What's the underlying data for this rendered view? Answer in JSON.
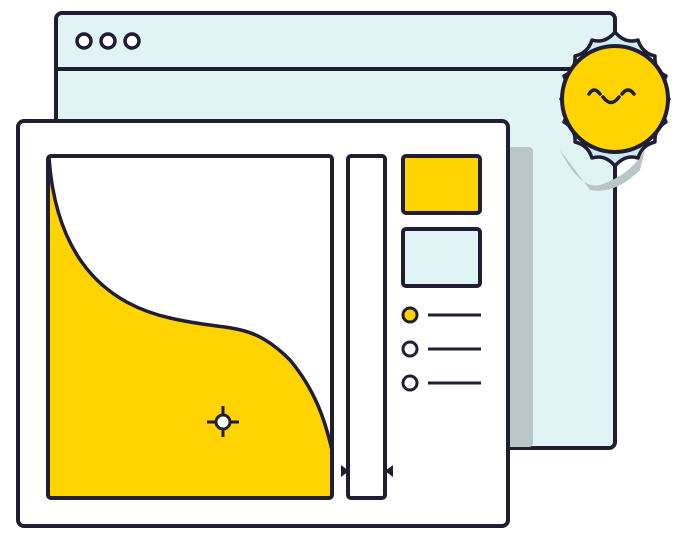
{
  "colors": {
    "outline": "#211d33",
    "window_back": "#e0f4f6",
    "panel": "#ffffff",
    "accent_yellow": "#ffd400",
    "swatch_light": "#e0f4f6",
    "shadow": "#b9c5c6",
    "sun_halo": "#cdecf2"
  },
  "illustration": {
    "subject": "color-picker-dialog-with-sun",
    "back_window": {
      "titlebar_dots": 3
    },
    "picker": {
      "swatches": [
        {
          "name": "swatch-yellow",
          "color": "#ffd400"
        },
        {
          "name": "swatch-light-blue",
          "color": "#e0f4f6"
        }
      ],
      "options": [
        {
          "name": "option-1",
          "selected": true
        },
        {
          "name": "option-2",
          "selected": false
        },
        {
          "name": "option-3",
          "selected": false
        }
      ]
    }
  }
}
